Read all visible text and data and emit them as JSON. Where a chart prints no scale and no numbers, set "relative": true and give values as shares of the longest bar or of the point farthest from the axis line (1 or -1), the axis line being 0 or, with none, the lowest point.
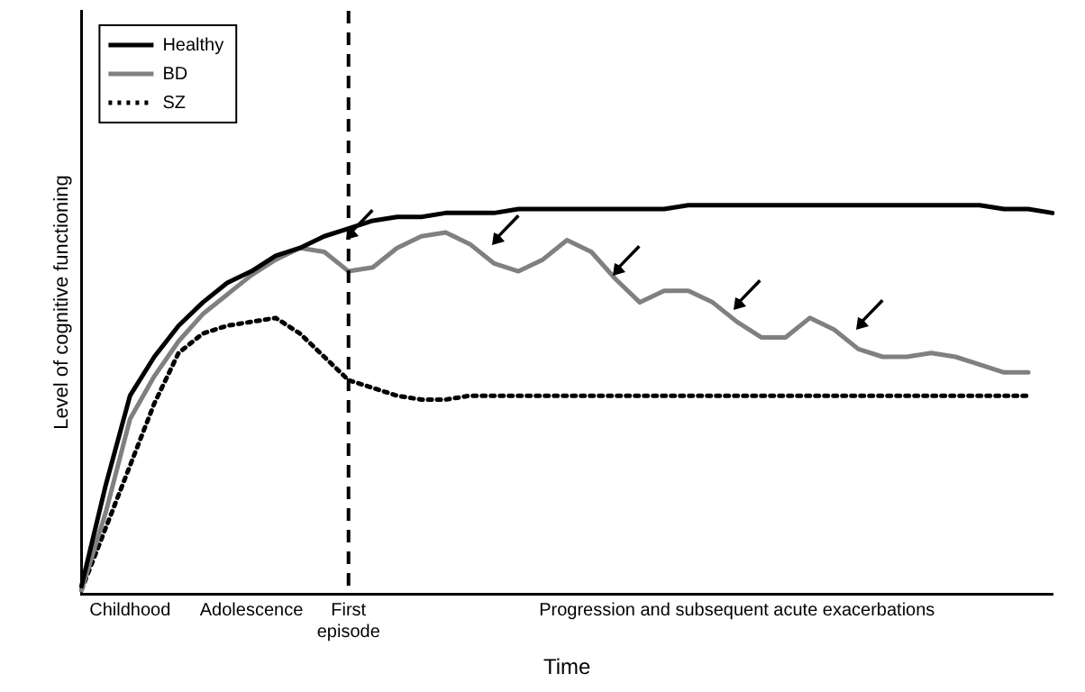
{
  "chart_data": {
    "type": "line",
    "relative": true,
    "xlabel": "Time",
    "ylabel": "Level of cognitive functioning",
    "legend": "top left",
    "marker": "none",
    "grid": false,
    "categories": [
      null,
      null,
      "Childhood",
      null,
      null,
      null,
      null,
      "Adolescence",
      null,
      null,
      null,
      "First\nepisode",
      null,
      null,
      null,
      null,
      null,
      null,
      null,
      null,
      null,
      null,
      null,
      null,
      null,
      null,
      null,
      "Progression and subsequent acute exacerbations",
      null,
      null,
      null,
      null,
      null,
      null,
      null,
      null,
      null,
      null,
      null,
      null,
      null
    ],
    "ref_lines": [
      {
        "axis": "x",
        "value": "First\nepisode",
        "label": null,
        "color": "#000000",
        "line_style": "dashed"
      }
    ],
    "series": [
      {
        "name": "Healthy",
        "color": "#000000",
        "line_style": "solid",
        "values": [
          0.02,
          0.28,
          0.51,
          0.61,
          0.69,
          0.75,
          0.8,
          0.83,
          0.87,
          0.89,
          0.92,
          0.94,
          0.96,
          0.97,
          0.97,
          0.98,
          0.98,
          0.98,
          0.99,
          0.99,
          0.99,
          0.99,
          0.99,
          0.99,
          0.99,
          1.0,
          1.0,
          1.0,
          1.0,
          1.0,
          1.0,
          1.0,
          1.0,
          1.0,
          1.0,
          1.0,
          1.0,
          1.0,
          0.99,
          0.99,
          0.98
        ]
      },
      {
        "name": "BD",
        "color": "#808080",
        "line_style": "solid",
        "values": [
          0.01,
          0.21,
          0.45,
          0.56,
          0.65,
          0.72,
          0.77,
          0.82,
          0.86,
          0.89,
          0.88,
          0.83,
          0.84,
          0.89,
          0.92,
          0.93,
          0.9,
          0.85,
          0.83,
          0.86,
          0.91,
          0.88,
          0.81,
          0.75,
          0.78,
          0.78,
          0.75,
          0.7,
          0.66,
          0.66,
          0.71,
          0.68,
          0.63,
          0.61,
          0.61,
          0.62,
          0.61,
          0.59,
          0.57,
          0.57,
          null
        ]
      },
      {
        "name": "SZ",
        "color": "#000000",
        "line_style": "dotted",
        "values": [
          0.01,
          0.17,
          0.33,
          0.49,
          0.62,
          0.67,
          0.69,
          0.7,
          0.71,
          0.67,
          0.61,
          0.55,
          0.53,
          0.51,
          0.5,
          0.5,
          0.51,
          0.51,
          0.51,
          0.51,
          0.51,
          0.51,
          0.51,
          0.51,
          0.51,
          0.51,
          0.51,
          0.51,
          0.51,
          0.51,
          0.51,
          0.51,
          0.51,
          0.51,
          0.51,
          0.51,
          0.51,
          0.51,
          0.51,
          0.51,
          null
        ]
      }
    ]
  }
}
